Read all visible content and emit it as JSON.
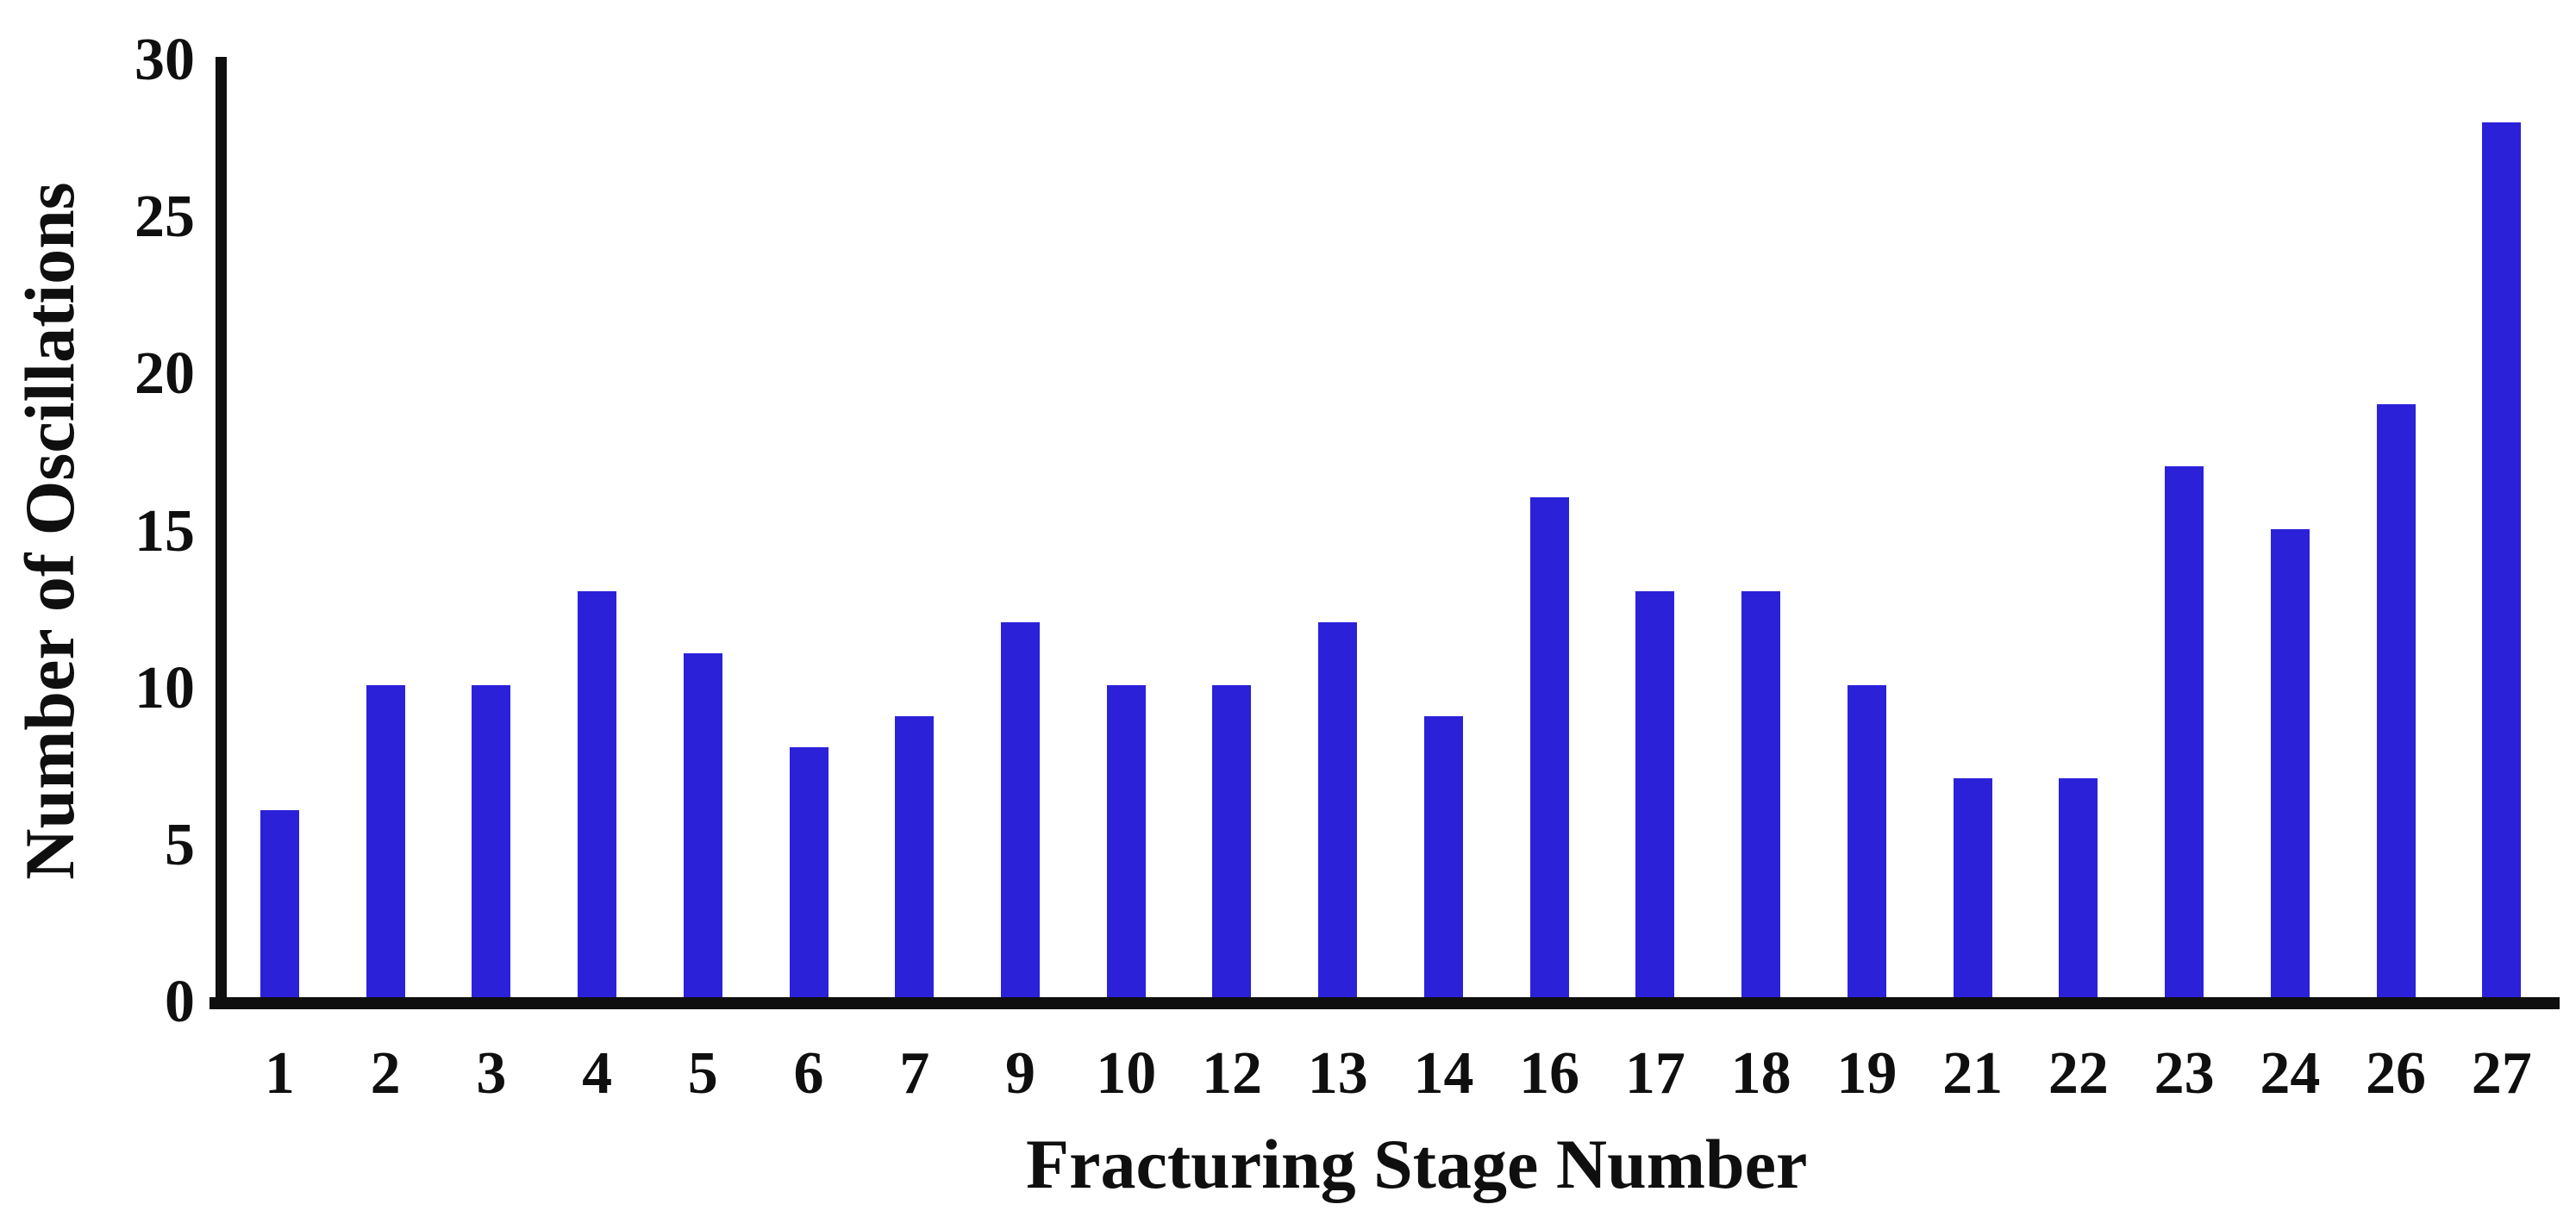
{
  "chart_data": {
    "type": "bar",
    "title": "",
    "xlabel": "Fracturing Stage Number",
    "ylabel": "Number of Oscillations",
    "categories": [
      "1",
      "2",
      "3",
      "4",
      "5",
      "6",
      "7",
      "9",
      "10",
      "12",
      "13",
      "14",
      "16",
      "17",
      "18",
      "19",
      "21",
      "22",
      "23",
      "24",
      "26",
      "27"
    ],
    "values": [
      6,
      10,
      10,
      13,
      11,
      8,
      9,
      12,
      10,
      10,
      12,
      9,
      16,
      13,
      13,
      10,
      7,
      7,
      17,
      15,
      19,
      28
    ],
    "ylim": [
      0,
      30
    ],
    "yticks": [
      0,
      5,
      10,
      15,
      20,
      25,
      30
    ],
    "grid": false,
    "legend_position": "none",
    "bar_color": "#2B21D9",
    "axis_color": "#0F0F0F",
    "text_color": "#0F0F0F",
    "background_color": "#FFFFFF"
  }
}
